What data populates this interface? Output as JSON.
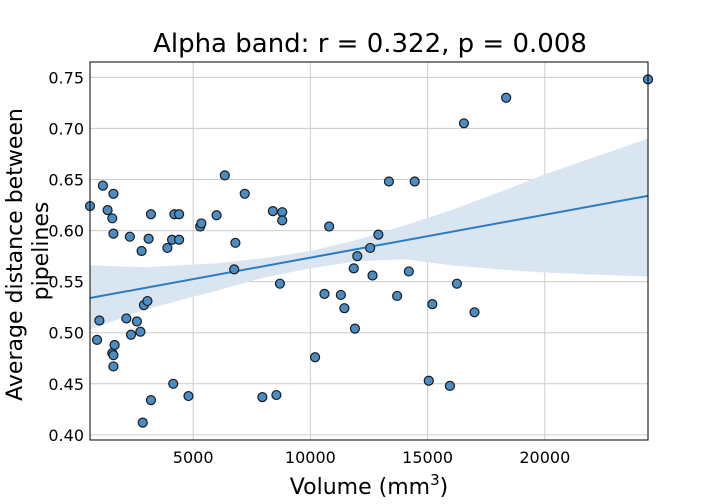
{
  "chart_data": {
    "type": "scatter",
    "title": "Alpha band: r = 0.322, p = 0.008",
    "xlabel": "Volume (mm",
    "xlabel_sup": "3",
    "xlabel_close": ")",
    "ylabel_lines": [
      "Average distance between",
      "pipelines"
    ],
    "xlim": [
      600,
      24400
    ],
    "ylim": [
      0.395,
      0.765
    ],
    "xticks": [
      5000,
      10000,
      15000,
      20000
    ],
    "xtick_labels": [
      "5000",
      "10000",
      "15000",
      "20000"
    ],
    "yticks": [
      0.4,
      0.45,
      0.5,
      0.55,
      0.6,
      0.65,
      0.7,
      0.75
    ],
    "ytick_labels": [
      "0.40",
      "0.45",
      "0.50",
      "0.55",
      "0.60",
      "0.65",
      "0.70",
      "0.75"
    ],
    "grid": true,
    "colors": {
      "marker": "#4a8cc4",
      "marker_edge": "#1a1a1a",
      "fit_line": "#2a7bbf",
      "ci_band": "#d9e6f2"
    },
    "fit_line": {
      "x": [
        600,
        24400
      ],
      "y": [
        0.534,
        0.634
      ]
    },
    "ci_band": {
      "x": [
        600,
        3000,
        6000,
        8000,
        10000,
        12000,
        14000,
        16000,
        18000,
        20000,
        22000,
        24400
      ],
      "lower": [
        0.503,
        0.523,
        0.541,
        0.554,
        0.563,
        0.57,
        0.572,
        0.566,
        0.562,
        0.559,
        0.557,
        0.555
      ],
      "upper": [
        0.566,
        0.564,
        0.568,
        0.573,
        0.58,
        0.591,
        0.605,
        0.62,
        0.637,
        0.655,
        0.671,
        0.69
      ]
    },
    "points": [
      {
        "x": 600,
        "y": 0.624
      },
      {
        "x": 1150,
        "y": 0.644
      },
      {
        "x": 1350,
        "y": 0.62
      },
      {
        "x": 1600,
        "y": 0.636
      },
      {
        "x": 1550,
        "y": 0.612
      },
      {
        "x": 1600,
        "y": 0.597
      },
      {
        "x": 2300,
        "y": 0.594
      },
      {
        "x": 2800,
        "y": 0.58
      },
      {
        "x": 3100,
        "y": 0.592
      },
      {
        "x": 3200,
        "y": 0.616
      },
      {
        "x": 3900,
        "y": 0.583
      },
      {
        "x": 4100,
        "y": 0.591
      },
      {
        "x": 4200,
        "y": 0.616
      },
      {
        "x": 4400,
        "y": 0.616
      },
      {
        "x": 4400,
        "y": 0.591
      },
      {
        "x": 5300,
        "y": 0.604
      },
      {
        "x": 5350,
        "y": 0.607
      },
      {
        "x": 6000,
        "y": 0.615
      },
      {
        "x": 6350,
        "y": 0.654
      },
      {
        "x": 6800,
        "y": 0.588
      },
      {
        "x": 6750,
        "y": 0.562
      },
      {
        "x": 7200,
        "y": 0.636
      },
      {
        "x": 8400,
        "y": 0.619
      },
      {
        "x": 8800,
        "y": 0.618
      },
      {
        "x": 8800,
        "y": 0.61
      },
      {
        "x": 8700,
        "y": 0.548
      },
      {
        "x": 10800,
        "y": 0.604
      },
      {
        "x": 10600,
        "y": 0.538
      },
      {
        "x": 11300,
        "y": 0.537
      },
      {
        "x": 11450,
        "y": 0.524
      },
      {
        "x": 11850,
        "y": 0.563
      },
      {
        "x": 12000,
        "y": 0.575
      },
      {
        "x": 11900,
        "y": 0.504
      },
      {
        "x": 12550,
        "y": 0.583
      },
      {
        "x": 12650,
        "y": 0.556
      },
      {
        "x": 12900,
        "y": 0.596
      },
      {
        "x": 13350,
        "y": 0.648
      },
      {
        "x": 13700,
        "y": 0.536
      },
      {
        "x": 14200,
        "y": 0.56
      },
      {
        "x": 14450,
        "y": 0.648
      },
      {
        "x": 15200,
        "y": 0.528
      },
      {
        "x": 16250,
        "y": 0.548
      },
      {
        "x": 16550,
        "y": 0.705
      },
      {
        "x": 17000,
        "y": 0.52
      },
      {
        "x": 18350,
        "y": 0.73
      },
      {
        "x": 24400,
        "y": 0.748
      },
      {
        "x": 900,
        "y": 0.493
      },
      {
        "x": 1000,
        "y": 0.512
      },
      {
        "x": 1550,
        "y": 0.48
      },
      {
        "x": 1600,
        "y": 0.478
      },
      {
        "x": 1650,
        "y": 0.488
      },
      {
        "x": 1600,
        "y": 0.467
      },
      {
        "x": 2150,
        "y": 0.514
      },
      {
        "x": 2350,
        "y": 0.498
      },
      {
        "x": 2600,
        "y": 0.511
      },
      {
        "x": 2750,
        "y": 0.501
      },
      {
        "x": 2900,
        "y": 0.527
      },
      {
        "x": 3050,
        "y": 0.531
      },
      {
        "x": 2850,
        "y": 0.412
      },
      {
        "x": 3200,
        "y": 0.434
      },
      {
        "x": 4150,
        "y": 0.45
      },
      {
        "x": 4800,
        "y": 0.438
      },
      {
        "x": 7950,
        "y": 0.437
      },
      {
        "x": 8550,
        "y": 0.439
      },
      {
        "x": 10200,
        "y": 0.476
      },
      {
        "x": 15050,
        "y": 0.453
      },
      {
        "x": 15950,
        "y": 0.448
      }
    ]
  }
}
